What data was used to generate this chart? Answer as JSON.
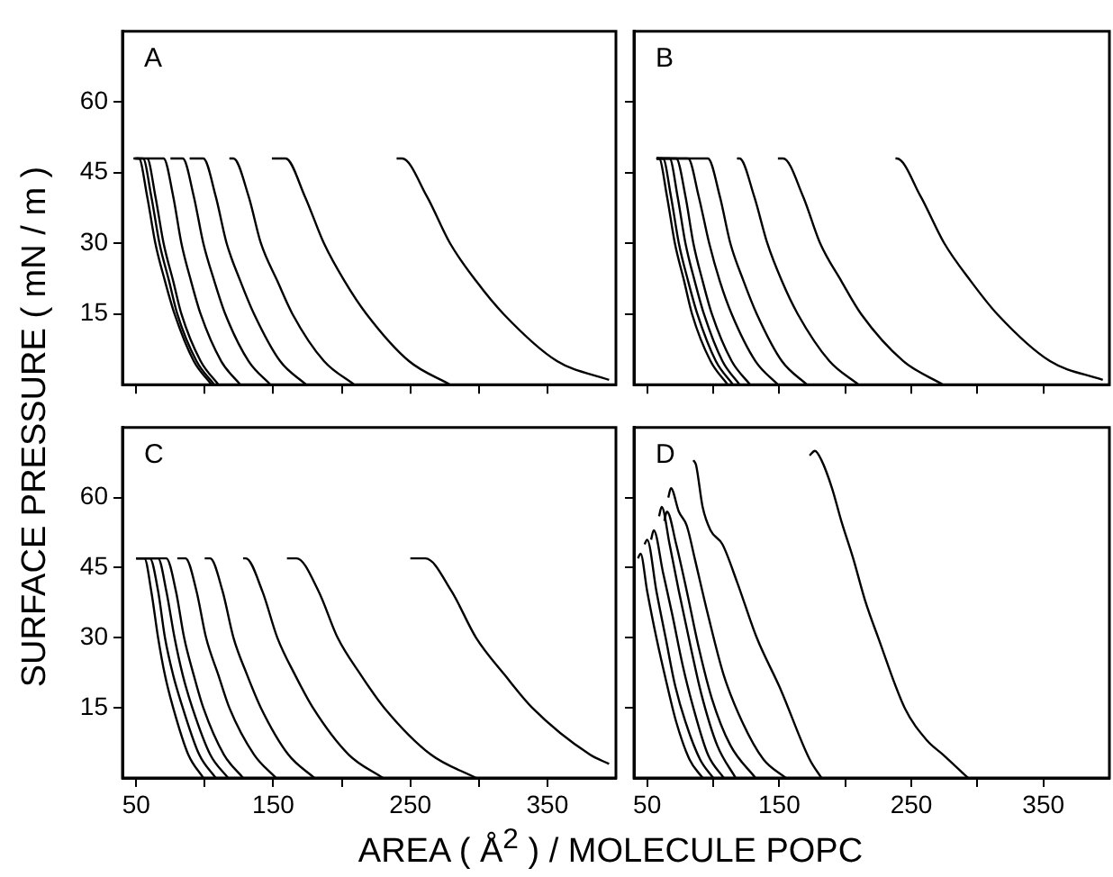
{
  "chart_data": [
    {
      "type": "line",
      "title": "A",
      "xlim": [
        40,
        400
      ],
      "xticks": [
        50,
        {
          "value": 100,
          "label": null
        },
        150,
        {
          "value": 200,
          "label": null
        },
        250,
        {
          "value": 300,
          "label": null
        },
        350
      ],
      "ylim": [
        0,
        75
      ],
      "yticks": [
        15,
        30,
        45,
        60
      ],
      "tick_labels": "y",
      "series": [
        {
          "color": "#000000",
          "x": [
            48,
            52,
            58,
            64,
            71,
            78,
            92,
            105
          ],
          "values": [
            48,
            48,
            40,
            30,
            22,
            15,
            5,
            0
          ]
        },
        {
          "color": "#000000",
          "x": [
            49,
            55,
            61,
            67,
            74,
            80,
            94,
            107
          ],
          "values": [
            48,
            48,
            40,
            30,
            22,
            15,
            5,
            0
          ]
        },
        {
          "color": "#000000",
          "x": [
            50,
            58,
            64,
            70,
            77,
            83,
            97,
            110
          ],
          "values": [
            48,
            48,
            40,
            30,
            22,
            15,
            5,
            0
          ]
        },
        {
          "color": "#000000",
          "x": [
            58,
            70,
            77,
            83,
            90,
            97,
            112,
            126
          ],
          "values": [
            48,
            48,
            40,
            30,
            22,
            15,
            5,
            0
          ]
        },
        {
          "color": "#000000",
          "x": [
            75,
            84,
            92,
            99,
            107,
            115,
            132,
            148
          ],
          "values": [
            48,
            48,
            40,
            30,
            22,
            15,
            5,
            0
          ]
        },
        {
          "color": "#000000",
          "x": [
            89,
            99,
            108,
            116,
            126,
            136,
            155,
            174
          ],
          "values": [
            48,
            48,
            40,
            30,
            22,
            15,
            5,
            0
          ]
        },
        {
          "color": "#000000",
          "x": [
            118,
            121,
            132,
            141,
            153,
            164,
            187,
            209
          ],
          "values": [
            48,
            48,
            40,
            30,
            22,
            15,
            5,
            0
          ]
        },
        {
          "color": "#000000",
          "x": [
            149,
            159,
            173,
            187,
            202,
            218,
            249,
            279
          ],
          "values": [
            48,
            48,
            40,
            30,
            22,
            15,
            5,
            0
          ]
        },
        {
          "color": "#000000",
          "x": [
            240,
            244,
            262,
            279,
            298,
            318,
            357,
            395
          ],
          "values": [
            48,
            48,
            40,
            30,
            22,
            15,
            5,
            1
          ]
        }
      ]
    },
    {
      "type": "line",
      "title": "B",
      "xlim": [
        40,
        400
      ],
      "xticks": [
        50,
        {
          "value": 100,
          "label": null
        },
        150,
        {
          "value": 200,
          "label": null
        },
        250,
        {
          "value": 300,
          "label": null
        },
        350
      ],
      "ylim": [
        0,
        75
      ],
      "yticks": [
        15,
        30,
        45,
        60
      ],
      "tick_labels": false,
      "series": [
        {
          "color": "#000000",
          "x": [
            57,
            59,
            65,
            71,
            78,
            84,
            98,
            111
          ],
          "values": [
            48,
            48,
            40,
            30,
            22,
            15,
            5,
            0
          ]
        },
        {
          "color": "#000000",
          "x": [
            57,
            62,
            68,
            74,
            81,
            88,
            102,
            115
          ],
          "values": [
            48,
            48,
            40,
            30,
            22,
            15,
            5,
            0
          ]
        },
        {
          "color": "#000000",
          "x": [
            57,
            67,
            73,
            79,
            86,
            93,
            107,
            120
          ],
          "values": [
            48,
            48,
            40,
            30,
            22,
            15,
            5,
            0
          ]
        },
        {
          "color": "#000000",
          "x": [
            57,
            72,
            79,
            85,
            92,
            99,
            114,
            128
          ],
          "values": [
            48,
            48,
            40,
            30,
            22,
            15,
            5,
            0
          ]
        },
        {
          "color": "#000000",
          "x": [
            57,
            81,
            89,
            97,
            105,
            114,
            132,
            149
          ],
          "values": [
            48,
            48,
            40,
            30,
            22,
            15,
            5,
            0
          ]
        },
        {
          "color": "#000000",
          "x": [
            57,
            96,
            105,
            113,
            123,
            133,
            152,
            171
          ],
          "values": [
            48,
            48,
            40,
            30,
            22,
            15,
            5,
            0
          ]
        },
        {
          "color": "#000000",
          "x": [
            118,
            120,
            131,
            141,
            152,
            164,
            188,
            210
          ],
          "values": [
            48,
            48,
            40,
            30,
            22,
            15,
            5,
            0
          ]
        },
        {
          "color": "#000000",
          "x": [
            149,
            153,
            168,
            181,
            197,
            212,
            244,
            274
          ],
          "values": [
            48,
            48,
            40,
            30,
            22,
            15,
            5,
            0
          ]
        },
        {
          "color": "#000000",
          "x": [
            238,
            239,
            257,
            275,
            295,
            315,
            355,
            395
          ],
          "values": [
            48,
            48,
            40,
            30,
            22,
            15,
            5,
            1
          ]
        }
      ]
    },
    {
      "type": "line",
      "title": "C",
      "xlabel": "AREA ( Å$^{2}$ ) / MOLECULE POPC",
      "ylabel": "SURFACE PRESSURE  ( mN / m )",
      "xlim": [
        40,
        400
      ],
      "xticks": [
        50,
        {
          "value": 100,
          "label": null
        },
        150,
        {
          "value": 200,
          "label": null
        },
        250,
        {
          "value": 300,
          "label": null
        },
        350
      ],
      "ylim": [
        0,
        75
      ],
      "yticks": [
        15,
        30,
        45,
        60
      ],
      "series": [
        {
          "color": "#000000",
          "x": [
            50,
            56,
            61,
            66,
            71,
            77,
            88,
            99
          ],
          "values": [
            47,
            47,
            40,
            30,
            22,
            15,
            5,
            0
          ]
        },
        {
          "color": "#000000",
          "x": [
            50,
            60,
            66,
            71,
            77,
            84,
            96,
            108
          ],
          "values": [
            47,
            47,
            40,
            30,
            22,
            15,
            5,
            0
          ]
        },
        {
          "color": "#000000",
          "x": [
            50,
            66,
            72,
            78,
            84,
            91,
            104,
            117
          ],
          "values": [
            47,
            47,
            40,
            30,
            22,
            15,
            5,
            0
          ]
        },
        {
          "color": "#000000",
          "x": [
            50,
            72,
            79,
            85,
            92,
            99,
            114,
            128
          ],
          "values": [
            47,
            47,
            40,
            30,
            22,
            15,
            5,
            0
          ]
        },
        {
          "color": "#000000",
          "x": [
            80,
            86,
            94,
            101,
            110,
            118,
            136,
            152
          ],
          "values": [
            47,
            47,
            40,
            30,
            22,
            15,
            5,
            0
          ]
        },
        {
          "color": "#000000",
          "x": [
            100,
            104,
            113,
            121,
            131,
            141,
            161,
            180
          ],
          "values": [
            47,
            47,
            40,
            30,
            22,
            15,
            5,
            0
          ]
        },
        {
          "color": "#000000",
          "x": [
            128,
            130,
            142,
            153,
            166,
            179,
            205,
            230
          ],
          "values": [
            47,
            47,
            40,
            30,
            22,
            15,
            5,
            0
          ]
        },
        {
          "color": "#000000",
          "x": [
            160,
            167,
            183,
            197,
            214,
            231,
            265,
            298
          ],
          "values": [
            47,
            47,
            40,
            30,
            22,
            15,
            5,
            0
          ]
        },
        {
          "color": "#000000",
          "x": [
            250,
            261,
            280,
            298,
            319,
            339,
            381,
            395
          ],
          "values": [
            47,
            47,
            40,
            30,
            22,
            15,
            5,
            3
          ]
        }
      ]
    },
    {
      "type": "line",
      "title": "D",
      "xlim": [
        40,
        400
      ],
      "xticks": [
        50,
        {
          "value": 100,
          "label": null
        },
        150,
        {
          "value": 200,
          "label": null
        },
        250,
        {
          "value": 300,
          "label": null
        },
        350
      ],
      "ylim": [
        0,
        75
      ],
      "yticks": [
        15,
        30,
        45,
        60
      ],
      "tick_labels": "x",
      "series": [
        {
          "color": "#000000",
          "x": [
            43,
            45,
            50,
            57,
            65,
            72,
            82,
            92
          ],
          "values": [
            47,
            48,
            40,
            30,
            20,
            12,
            4,
            0
          ]
        },
        {
          "color": "#000000",
          "x": [
            48,
            50,
            57,
            64,
            71,
            79,
            90,
            100
          ],
          "values": [
            50,
            51,
            40,
            30,
            20,
            12,
            4,
            0
          ]
        },
        {
          "color": "#000000",
          "x": [
            53,
            55,
            62,
            69,
            77,
            85,
            96,
            108
          ],
          "values": [
            51,
            53,
            44,
            35,
            24,
            15,
            5,
            0
          ]
        },
        {
          "color": "#000000",
          "x": [
            59,
            61,
            67,
            74,
            83,
            91,
            103,
            117
          ],
          "values": [
            56,
            58,
            50,
            40,
            28,
            18,
            7,
            0
          ]
        },
        {
          "color": "#000000",
          "x": [
            63,
            65,
            72,
            80,
            89,
            99,
            113,
            132
          ],
          "values": [
            55,
            57,
            50,
            40,
            28,
            17,
            7,
            0
          ]
        },
        {
          "color": "#000000",
          "x": [
            66,
            68,
            74,
            80,
            86,
            96,
            108,
            122,
            138,
            155
          ],
          "values": [
            60,
            62,
            57,
            54,
            47,
            35,
            22,
            12,
            4,
            0
          ]
        },
        {
          "color": "#000000",
          "x": [
            85,
            87,
            92,
            98,
            107,
            118,
            133,
            151,
            173,
            182
          ],
          "values": [
            68,
            67,
            58,
            53,
            50,
            42,
            30,
            19,
            4,
            0
          ]
        },
        {
          "color": "#000000",
          "x": [
            173,
            177,
            182,
            190,
            197,
            206,
            215,
            225,
            245,
            262,
            274,
            293
          ],
          "values": [
            69,
            70,
            68,
            62,
            55,
            47,
            38,
            30,
            15,
            8,
            5,
            0
          ]
        }
      ]
    }
  ]
}
